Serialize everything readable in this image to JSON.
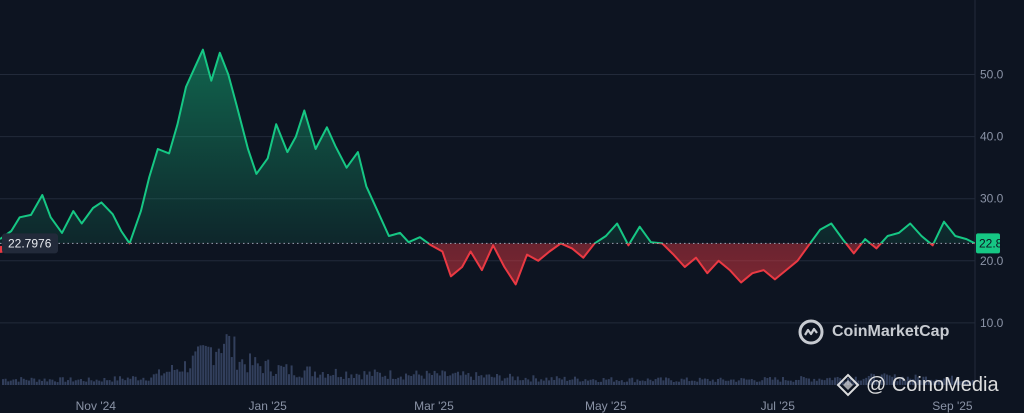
{
  "chart_data": {
    "type": "area",
    "title": "",
    "xlabel": "",
    "ylabel": "",
    "ylim": [
      0,
      62
    ],
    "y_ticks": [
      "10.0",
      "20.0",
      "30.0",
      "40.0",
      "50.0"
    ],
    "y_tick_values": [
      10,
      20,
      30,
      40,
      50
    ],
    "x_ticks": [
      "Nov '24",
      "Jan '25",
      "Mar '25",
      "May '25",
      "Jul '25",
      "Sep '25"
    ],
    "x_tick_dates": [
      "2024-11-01",
      "2025-01-01",
      "2025-03-01",
      "2025-05-01",
      "2025-07-01",
      "2025-09-01"
    ],
    "x_range": [
      "2024-09-28",
      "2025-09-09"
    ],
    "baseline": 22.7976,
    "baseline_label": "22.7976",
    "last_value_label": "22.8",
    "grid": true,
    "series": [
      {
        "x": [
          "2024-09-28",
          "2024-10-02",
          "2024-10-05",
          "2024-10-09",
          "2024-10-13",
          "2024-10-16",
          "2024-10-20",
          "2024-10-24",
          "2024-10-27",
          "2024-10-31",
          "2024-11-03",
          "2024-11-07",
          "2024-11-10",
          "2024-11-13",
          "2024-11-17",
          "2024-11-20",
          "2024-11-23",
          "2024-11-27",
          "2024-11-30",
          "2024-12-03",
          "2024-12-06",
          "2024-12-09",
          "2024-12-12",
          "2024-12-15",
          "2024-12-18",
          "2024-12-21",
          "2024-12-25",
          "2024-12-28",
          "2025-01-01",
          "2025-01-04",
          "2025-01-08",
          "2025-01-11",
          "2025-01-14",
          "2025-01-18",
          "2025-01-22",
          "2025-01-25",
          "2025-01-29",
          "2025-02-02",
          "2025-02-05",
          "2025-02-09",
          "2025-02-13",
          "2025-02-17",
          "2025-02-20",
          "2025-02-24",
          "2025-02-28",
          "2025-03-04",
          "2025-03-07",
          "2025-03-11",
          "2025-03-14",
          "2025-03-18",
          "2025-03-22",
          "2025-03-26",
          "2025-03-30",
          "2025-04-03",
          "2025-04-07",
          "2025-04-11",
          "2025-04-15",
          "2025-04-19",
          "2025-04-23",
          "2025-04-27",
          "2025-05-01",
          "2025-05-05",
          "2025-05-09",
          "2025-05-13",
          "2025-05-17",
          "2025-05-21",
          "2025-05-25",
          "2025-05-29",
          "2025-06-02",
          "2025-06-06",
          "2025-06-10",
          "2025-06-14",
          "2025-06-18",
          "2025-06-22",
          "2025-06-26",
          "2025-06-30",
          "2025-07-04",
          "2025-07-08",
          "2025-07-12",
          "2025-07-16",
          "2025-07-20",
          "2025-07-24",
          "2025-07-28",
          "2025-08-01",
          "2025-08-05",
          "2025-08-09",
          "2025-08-13",
          "2025-08-17",
          "2025-08-21",
          "2025-08-25",
          "2025-08-29",
          "2025-09-02",
          "2025-09-06",
          "2025-09-09"
        ],
        "values": [
          23.5,
          24.8,
          27.0,
          27.4,
          30.6,
          27.0,
          24.5,
          28.0,
          26.0,
          28.5,
          29.4,
          27.5,
          24.8,
          22.8,
          28.0,
          33.5,
          38.0,
          37.3,
          42.0,
          48.0,
          51.0,
          54.0,
          49.0,
          53.5,
          50.0,
          45.0,
          38.0,
          34.0,
          36.5,
          42.0,
          37.5,
          40.0,
          44.2,
          38.0,
          41.5,
          38.5,
          35.0,
          37.5,
          32.0,
          28.0,
          24.0,
          24.5,
          23.0,
          23.8,
          22.5,
          21.5,
          17.5,
          19.0,
          21.5,
          18.5,
          22.5,
          19.0,
          16.2,
          21.0,
          20.0,
          21.5,
          22.8,
          22.0,
          20.5,
          22.8,
          24.0,
          26.0,
          22.5,
          25.5,
          23.0,
          22.8,
          21.0,
          19.0,
          20.5,
          18.0,
          20.0,
          18.5,
          16.5,
          18.0,
          18.5,
          17.0,
          18.5,
          20.0,
          22.5,
          25.0,
          26.0,
          23.5,
          21.2,
          23.5,
          22.0,
          24.0,
          24.5,
          26.0,
          24.0,
          22.5,
          26.3,
          24.0,
          23.5,
          22.8
        ]
      },
      {
        "name": "Volume",
        "x": [
          "2024-09-28",
          "2024-10-31",
          "2024-11-20",
          "2024-12-03",
          "2024-12-09",
          "2024-12-16",
          "2024-12-23",
          "2025-01-08",
          "2025-02-05",
          "2025-03-04",
          "2025-04-07",
          "2025-05-05",
          "2025-06-10",
          "2025-07-08",
          "2025-08-05",
          "2025-09-09"
        ],
        "values": [
          1.2,
          1.0,
          1.6,
          4.0,
          6.0,
          9.4,
          4.5,
          3.0,
          2.2,
          2.0,
          1.3,
          1.1,
          1.0,
          1.2,
          1.6,
          1.2
        ]
      }
    ]
  },
  "brand": {
    "name": "CoinMarketCap"
  },
  "watermark": {
    "text": "@ CoinoMedia"
  },
  "colors": {
    "background": "#0d1421",
    "up": "#16c784",
    "down": "#ea3943",
    "grid": "#222a3a",
    "volume": "#3a4666"
  }
}
